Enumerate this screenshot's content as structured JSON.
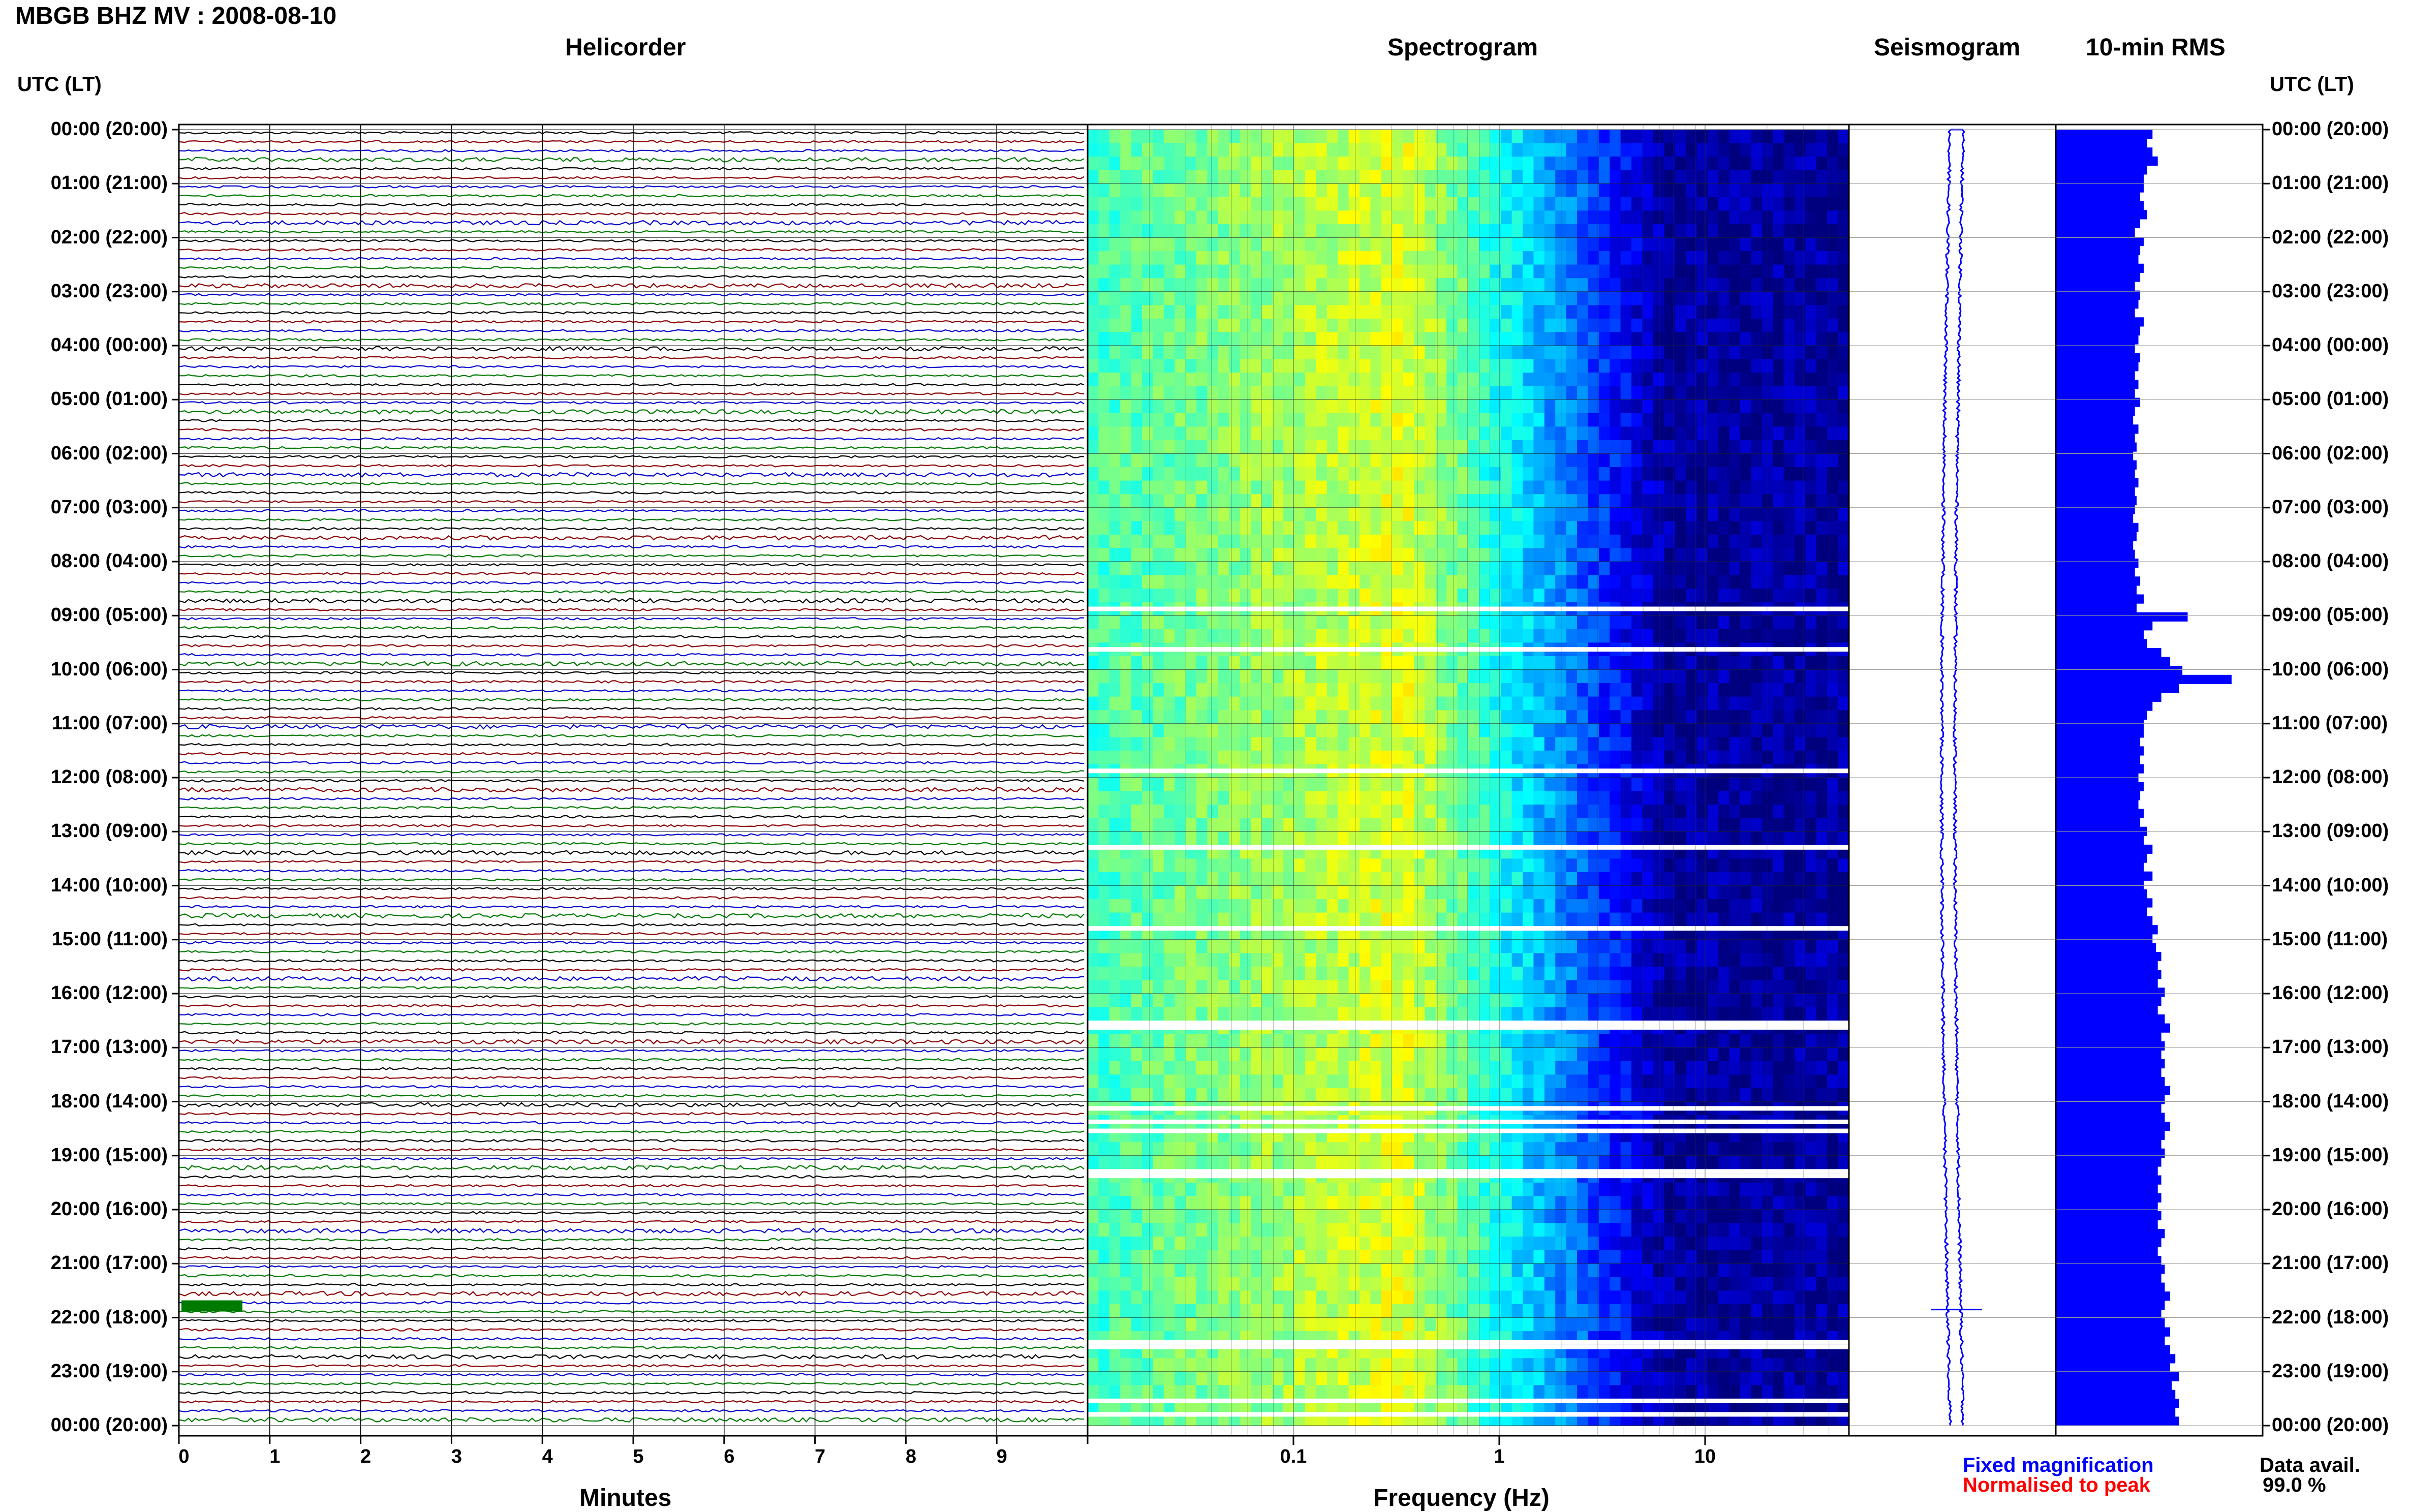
{
  "header": {
    "title": "MBGB BHZ MV : 2008-08-10",
    "left_axis_label": "UTC (LT)",
    "right_axis_label": "UTC (LT)"
  },
  "panels": {
    "helicorder": "Helicorder",
    "spectrogram": "Spectrogram",
    "seismogram": "Seismogram",
    "rms": "10-min RMS"
  },
  "footer": {
    "fixed_magnification": "Fixed magnification",
    "normalised_to_peak": "Normalised to peak",
    "data_avail_label": "Data avail.",
    "data_avail_value": "99.0 %"
  },
  "colors": {
    "helicorder_traces": [
      "#000000",
      "#8b0000",
      "#0000cd",
      "#007a00"
    ],
    "seismogram": "#0000ff",
    "rms": "#0000ff",
    "fixed_magnification": "#0000ff",
    "normalised_to_peak": "#ff0000",
    "spectrogram_colormap": [
      "#00007f",
      "#0000ff",
      "#0080ff",
      "#00ffff",
      "#80ff80",
      "#ffff00",
      "#ff8000",
      "#ff0000"
    ]
  },
  "chart_data": [
    {
      "type": "line",
      "name": "Helicorder",
      "xlabel": "Minutes",
      "x_ticks": [
        "0",
        "1",
        "2",
        "3",
        "4",
        "5",
        "6",
        "7",
        "8",
        "9"
      ],
      "xlim": [
        0,
        10
      ],
      "ylabel": "UTC (LT)",
      "y_ticks": [
        "00:00 (20:00)",
        "01:00 (21:00)",
        "02:00 (22:00)",
        "03:00 (23:00)",
        "04:00 (00:00)",
        "05:00 (01:00)",
        "06:00 (02:00)",
        "07:00 (03:00)",
        "08:00 (04:00)",
        "09:00 (05:00)",
        "10:00 (06:00)",
        "11:00 (07:00)",
        "12:00 (08:00)",
        "13:00 (09:00)",
        "14:00 (10:00)",
        "15:00 (11:00)",
        "16:00 (12:00)",
        "17:00 (13:00)",
        "18:00 (14:00)",
        "19:00 (15:00)",
        "20:00 (16:00)",
        "21:00 (17:00)",
        "22:00 (18:00)",
        "23:00 (19:00)",
        "00:00 (20:00)"
      ],
      "traces_per_hour": 6,
      "trace_colors_cycle": [
        "black",
        "darkred",
        "blue",
        "green"
      ]
    },
    {
      "type": "heatmap",
      "name": "Spectrogram",
      "xlabel": "Frequency (Hz)",
      "x_scale": "log",
      "x_ticks": [
        "0.1",
        "1",
        "10"
      ],
      "xlim": [
        0.01,
        50
      ],
      "ylim_hours": [
        0,
        24
      ],
      "peak_energy_frequency_hz": 0.35,
      "data_gaps_utc": [
        "08:50",
        "09:35",
        "11:50",
        "13:15",
        "14:45",
        "16:30",
        "16:35",
        "18:05",
        "18:20",
        "18:30",
        "19:15",
        "19:20",
        "22:25",
        "22:30",
        "23:30",
        "23:45"
      ]
    },
    {
      "type": "line",
      "name": "Seismogram",
      "description_of_axis": "hour of day",
      "ylim_hours": [
        0,
        24
      ],
      "event_hour_utc": 21.85
    },
    {
      "type": "bar",
      "name": "10-min RMS",
      "orientation": "horizontal",
      "ylim_hours": [
        0,
        24
      ],
      "bin_minutes": 10,
      "values_relative": [
        0.55,
        0.52,
        0.55,
        0.58,
        0.52,
        0.5,
        0.5,
        0.48,
        0.5,
        0.52,
        0.48,
        0.45,
        0.5,
        0.48,
        0.47,
        0.5,
        0.48,
        0.45,
        0.48,
        0.47,
        0.45,
        0.5,
        0.48,
        0.47,
        0.45,
        0.48,
        0.47,
        0.45,
        0.47,
        0.45,
        0.48,
        0.45,
        0.44,
        0.47,
        0.45,
        0.46,
        0.44,
        0.46,
        0.45,
        0.47,
        0.45,
        0.46,
        0.45,
        0.44,
        0.47,
        0.46,
        0.44,
        0.45,
        0.47,
        0.45,
        0.48,
        0.46,
        0.5,
        0.46,
        0.75,
        0.55,
        0.5,
        0.52,
        0.6,
        0.65,
        0.72,
        1.0,
        0.7,
        0.6,
        0.55,
        0.52,
        0.5,
        0.5,
        0.48,
        0.5,
        0.48,
        0.5,
        0.47,
        0.5,
        0.48,
        0.47,
        0.5,
        0.48,
        0.52,
        0.5,
        0.55,
        0.52,
        0.5,
        0.55,
        0.5,
        0.52,
        0.55,
        0.52,
        0.55,
        0.58,
        0.55,
        0.57,
        0.6,
        0.58,
        0.6,
        0.58,
        0.62,
        0.6,
        0.58,
        0.62,
        0.65,
        0.6,
        0.62,
        0.6,
        0.62,
        0.6,
        0.62,
        0.65,
        0.62,
        0.6,
        0.62,
        0.65,
        0.62,
        0.6,
        0.62,
        0.6,
        0.58,
        0.6,
        0.58,
        0.6,
        0.58,
        0.6,
        0.58,
        0.62,
        0.6,
        0.58,
        0.6,
        0.62,
        0.6,
        0.62,
        0.65,
        0.62,
        0.6,
        0.62,
        0.65,
        0.62,
        0.65,
        0.68,
        0.65,
        0.7,
        0.66,
        0.68,
        0.7,
        0.68,
        0.7
      ]
    }
  ]
}
